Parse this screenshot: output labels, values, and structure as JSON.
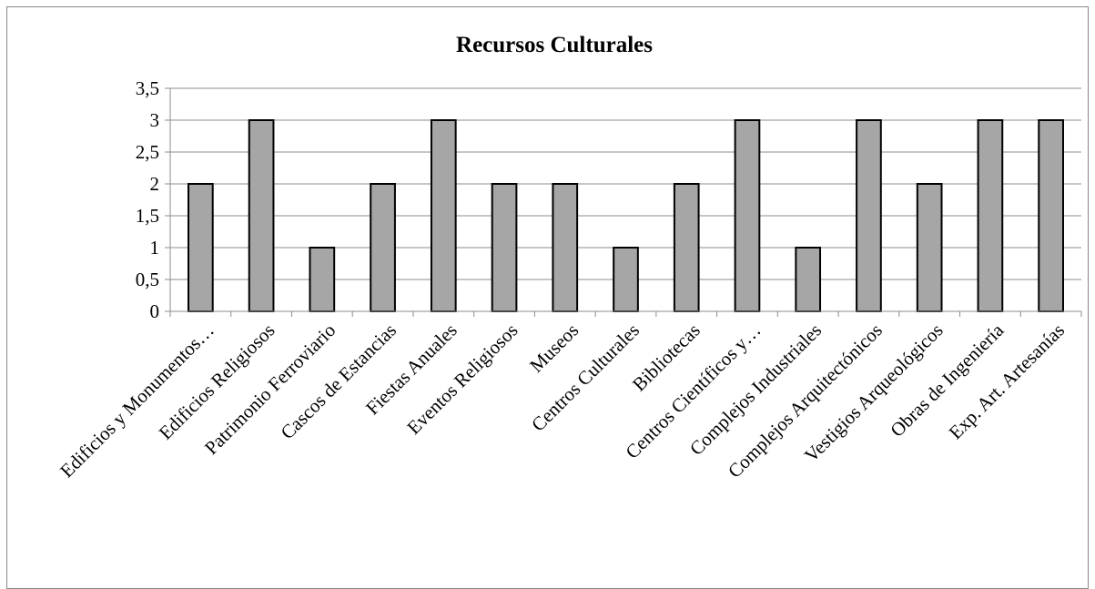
{
  "chart_data": {
    "type": "bar",
    "title": "Recursos Culturales",
    "xlabel": "",
    "ylabel": "",
    "categories": [
      "Edificios y Monumentos…",
      "Edificios Religiosos",
      "Patrimonio Ferroviario",
      "Cascos de Estancias",
      "Fiestas Anuales",
      "Eventos Religiosos",
      "Museos",
      "Centros Culturales",
      "Bibliotecas",
      "Centros Científicos y…",
      "Complejos Industriales",
      "Complejos Arquitectónicos",
      "Vestigios Arqueológicos",
      "Obras de Ingeniería",
      "Exp. Art. Artesanías"
    ],
    "values": [
      2,
      3,
      1,
      2,
      3,
      2,
      2,
      1,
      2,
      3,
      1,
      3,
      2,
      3,
      3
    ],
    "ylim": [
      0,
      3.5
    ],
    "yticks": [
      "0",
      "0,5",
      "1",
      "1,5",
      "2",
      "2,5",
      "3",
      "3,5"
    ],
    "grid": true,
    "legend": "none",
    "colors": {
      "bar_fill": "#a6a6a6",
      "bar_stroke": "#000000",
      "grid": "#8c8c8c"
    }
  }
}
